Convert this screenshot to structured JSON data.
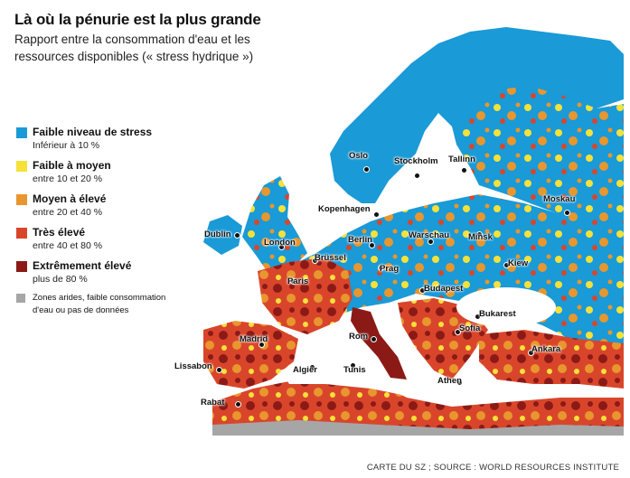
{
  "title": "Là où la pénurie est la plus grande",
  "subtitle_line1": "Rapport entre la consommation d'eau et les",
  "subtitle_line2": "ressources disponibles (« stress hydrique »)",
  "legend": [
    {
      "label": "Faible niveau de stress",
      "sub": "Inférieur à 10 %",
      "color": "#1a9ad6"
    },
    {
      "label": "Faible à moyen",
      "sub": "entre 10 et 20 %",
      "color": "#f5e13a"
    },
    {
      "label": "Moyen à élevé",
      "sub": "entre 20 et 40 %",
      "color": "#e8962e"
    },
    {
      "label": "Très élevé",
      "sub": "entre 40 et 80 %",
      "color": "#d9452b"
    },
    {
      "label": "Extrêmement élevé",
      "sub": "plus de 80 %",
      "color": "#8b1a16"
    },
    {
      "label": "Zones arides, faible consommation d'eau ou pas de données",
      "sub": "",
      "color": "#a6a6a6"
    }
  ],
  "cities": {
    "oslo": "Oslo",
    "stockholm": "Stockholm",
    "tallinn": "Tallinn",
    "moskau": "Moskau",
    "kopenhagen": "Kopenhagen",
    "dublin": "Dublin",
    "london": "London",
    "berlin": "Berlin",
    "warschau": "Warschau",
    "minsk": "Minsk",
    "bruessel": "Brüssel",
    "prag": "Prag",
    "kiew": "Kiew",
    "paris": "Paris",
    "budapest": "Budapest",
    "bukarest": "Bukarest",
    "sofia": "Sofia",
    "madrid": "Madrid",
    "rom": "Rom",
    "ankara": "Ankara",
    "lissabon": "Lissabon",
    "algier": "Algier",
    "tunis": "Tunis",
    "athen": "Athen",
    "rabat": "Rabat"
  },
  "credit": "CARTE DU SZ ; SOURCE : WORLD RESOURCES INSTITUTE",
  "colors": {
    "low": "#1a9ad6",
    "low_medium": "#f5e13a",
    "medium_high": "#e8962e",
    "high": "#d9452b",
    "extreme": "#8b1a16",
    "arid": "#a6a6a6",
    "sea": "#ffffff"
  }
}
